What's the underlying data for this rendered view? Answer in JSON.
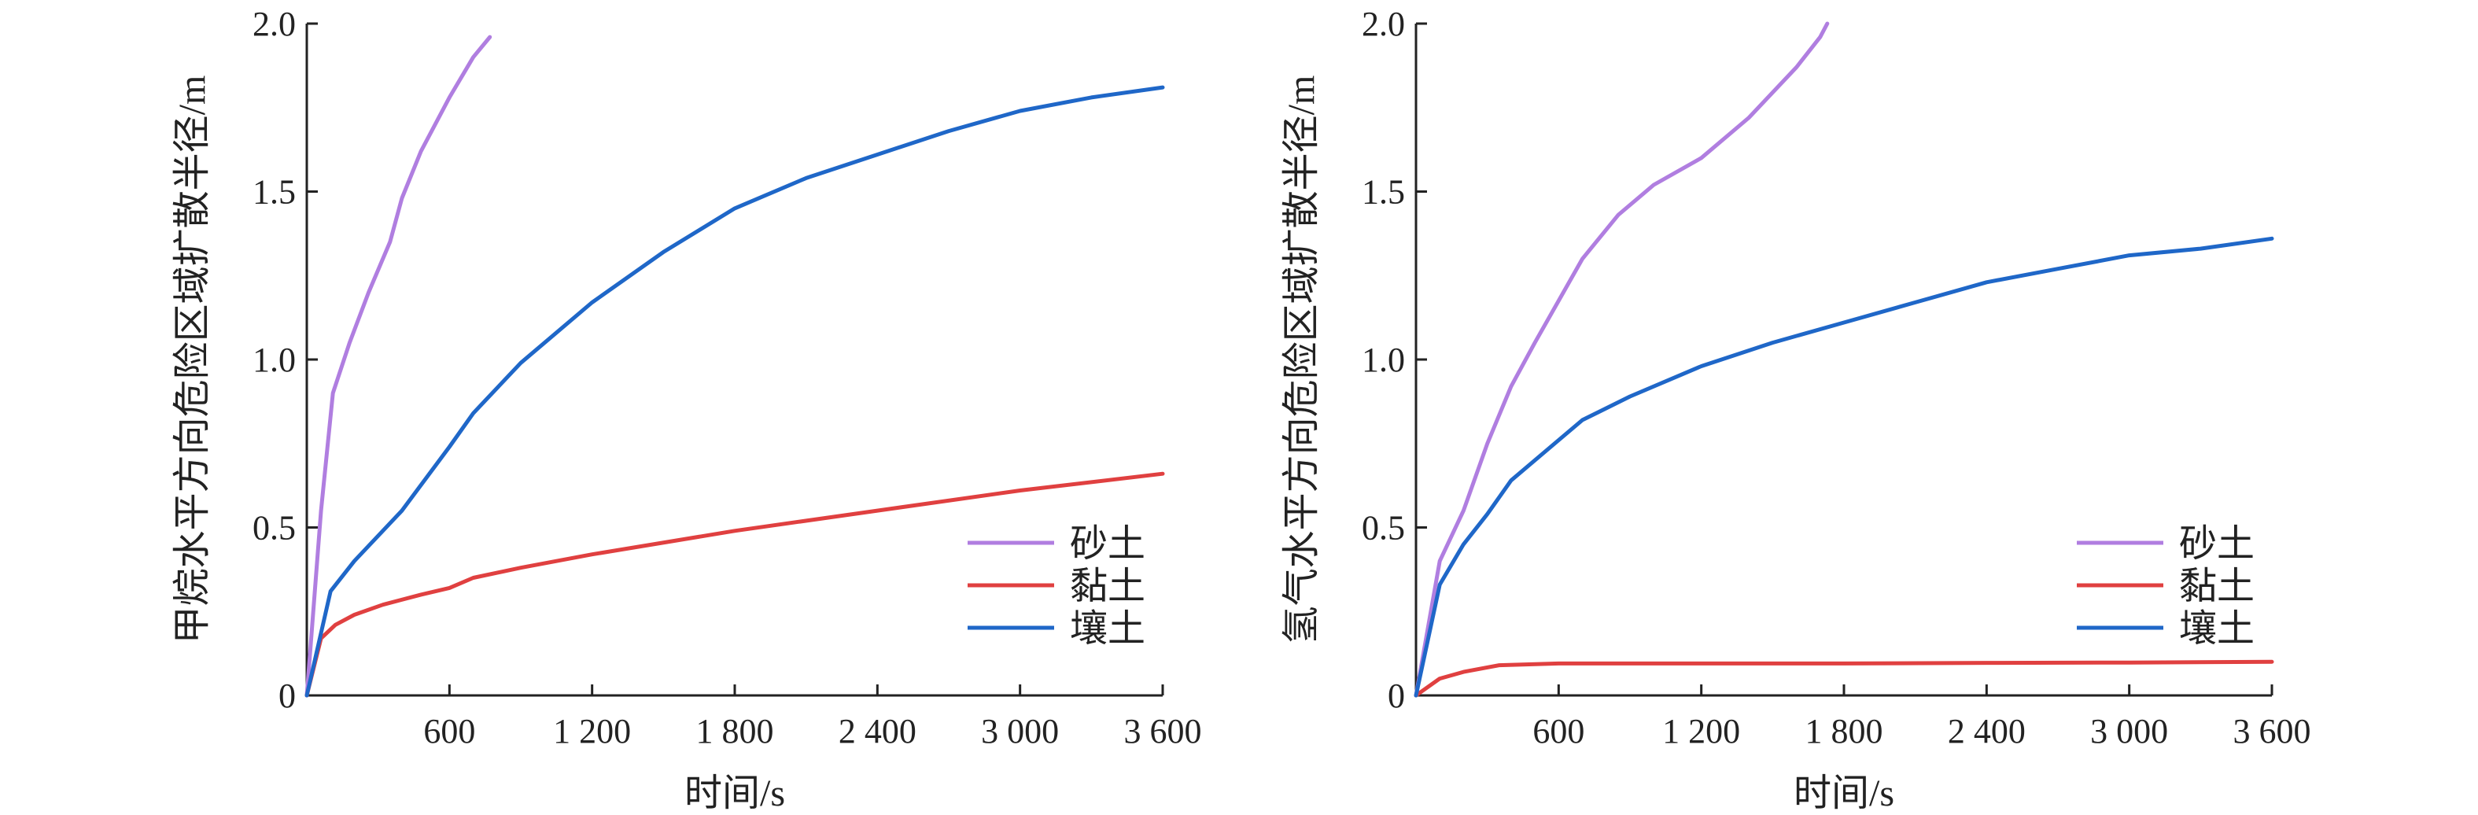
{
  "chart_data": [
    {
      "type": "line",
      "ylabel": "甲烷水平方向危险区域扩散半径/m",
      "xlabel": "时间/s",
      "xlim": [
        0,
        3600
      ],
      "ylim": [
        0,
        2.0
      ],
      "x_ticks": [
        600,
        1200,
        1800,
        2400,
        3000,
        3600
      ],
      "x_tick_labels": [
        "600",
        "1 200",
        "1 800",
        "2 400",
        "3 000",
        "3 600"
      ],
      "y_ticks": [
        0,
        0.5,
        1.0,
        1.5,
        2.0
      ],
      "y_tick_labels": [
        "0",
        "0.5",
        "1.0",
        "1.5",
        "2.0"
      ],
      "legend_position": "bottom-right",
      "grid": false,
      "series": [
        {
          "name": "砂土",
          "color": "#b07ee0",
          "points": [
            [
              0,
              0
            ],
            [
              60,
              0.55
            ],
            [
              110,
              0.9
            ],
            [
              180,
              1.05
            ],
            [
              260,
              1.2
            ],
            [
              350,
              1.35
            ],
            [
              400,
              1.48
            ],
            [
              480,
              1.62
            ],
            [
              600,
              1.78
            ],
            [
              700,
              1.9
            ],
            [
              770,
              1.96
            ]
          ]
        },
        {
          "name": "黏土",
          "color": "#e04040",
          "points": [
            [
              0,
              0
            ],
            [
              60,
              0.17
            ],
            [
              120,
              0.21
            ],
            [
              200,
              0.24
            ],
            [
              320,
              0.27
            ],
            [
              480,
              0.3
            ],
            [
              600,
              0.32
            ],
            [
              700,
              0.35
            ],
            [
              900,
              0.38
            ],
            [
              1200,
              0.42
            ],
            [
              1800,
              0.49
            ],
            [
              2400,
              0.55
            ],
            [
              3000,
              0.61
            ],
            [
              3600,
              0.66
            ]
          ]
        },
        {
          "name": "壤土",
          "color": "#1f67c8",
          "points": [
            [
              0,
              0
            ],
            [
              100,
              0.31
            ],
            [
              200,
              0.4
            ],
            [
              400,
              0.55
            ],
            [
              600,
              0.74
            ],
            [
              700,
              0.84
            ],
            [
              900,
              0.99
            ],
            [
              1200,
              1.17
            ],
            [
              1500,
              1.32
            ],
            [
              1800,
              1.45
            ],
            [
              2100,
              1.54
            ],
            [
              2400,
              1.61
            ],
            [
              2700,
              1.68
            ],
            [
              3000,
              1.74
            ],
            [
              3300,
              1.78
            ],
            [
              3600,
              1.81
            ]
          ]
        }
      ]
    },
    {
      "type": "line",
      "ylabel": "氢气水平方向危险区域扩散半径/m",
      "xlabel": "时间/s",
      "xlim": [
        0,
        3600
      ],
      "ylim": [
        0,
        2.0
      ],
      "x_ticks": [
        600,
        1200,
        1800,
        2400,
        3000,
        3600
      ],
      "x_tick_labels": [
        "600",
        "1 200",
        "1 800",
        "2 400",
        "3 000",
        "3 600"
      ],
      "y_ticks": [
        0,
        0.5,
        1.0,
        1.5,
        2.0
      ],
      "y_tick_labels": [
        "0",
        "0.5",
        "1.0",
        "1.5",
        "2.0"
      ],
      "legend_position": "bottom-right",
      "grid": false,
      "series": [
        {
          "name": "砂土",
          "color": "#b07ee0",
          "points": [
            [
              0,
              0
            ],
            [
              100,
              0.4
            ],
            [
              200,
              0.55
            ],
            [
              300,
              0.75
            ],
            [
              400,
              0.92
            ],
            [
              500,
              1.05
            ],
            [
              700,
              1.3
            ],
            [
              850,
              1.43
            ],
            [
              1000,
              1.52
            ],
            [
              1200,
              1.6
            ],
            [
              1400,
              1.72
            ],
            [
              1600,
              1.87
            ],
            [
              1700,
              1.96
            ],
            [
              1730,
              2.0
            ]
          ]
        },
        {
          "name": "黏土",
          "color": "#e04040",
          "points": [
            [
              0,
              0
            ],
            [
              100,
              0.05
            ],
            [
              200,
              0.07
            ],
            [
              350,
              0.09
            ],
            [
              600,
              0.095
            ],
            [
              1200,
              0.095
            ],
            [
              1800,
              0.095
            ],
            [
              2400,
              0.097
            ],
            [
              3000,
              0.098
            ],
            [
              3600,
              0.1
            ]
          ]
        },
        {
          "name": "壤土",
          "color": "#1f67c8",
          "points": [
            [
              0,
              0
            ],
            [
              100,
              0.33
            ],
            [
              200,
              0.45
            ],
            [
              300,
              0.54
            ],
            [
              400,
              0.64
            ],
            [
              600,
              0.76
            ],
            [
              700,
              0.82
            ],
            [
              900,
              0.89
            ],
            [
              1200,
              0.98
            ],
            [
              1500,
              1.05
            ],
            [
              1800,
              1.11
            ],
            [
              2100,
              1.17
            ],
            [
              2400,
              1.23
            ],
            [
              2700,
              1.27
            ],
            [
              3000,
              1.31
            ],
            [
              3300,
              1.33
            ],
            [
              3600,
              1.36
            ]
          ]
        }
      ]
    }
  ]
}
